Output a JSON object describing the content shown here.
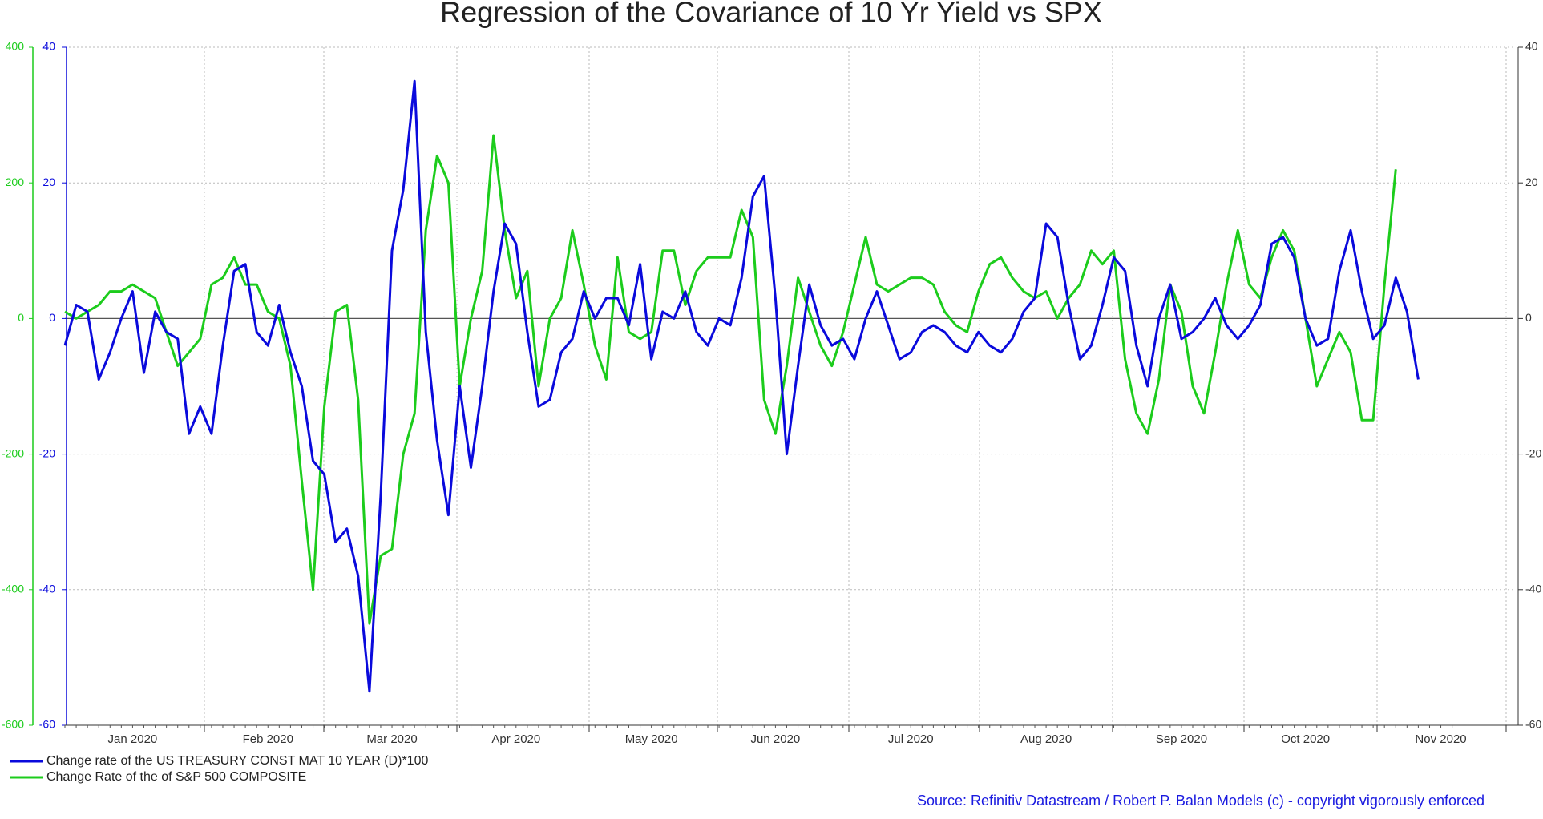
{
  "chart_data": {
    "type": "line",
    "title": "Regression of the Covariance of 10 Yr Yield vs SPX",
    "source": "Source: Refinitiv Datastream /  Robert P. Balan Models (c) - copyright vigorously enforced",
    "categories": [
      null,
      null,
      null,
      null,
      null,
      null,
      "Jan 2020",
      null,
      null,
      null,
      null,
      null,
      null,
      null,
      null,
      null,
      null,
      null,
      "Feb 2020",
      null,
      null,
      null,
      null,
      null,
      null,
      null,
      null,
      null,
      null,
      "Mar 2020",
      null,
      null,
      null,
      null,
      null,
      null,
      null,
      null,
      null,
      null,
      "Apr 2020",
      null,
      null,
      null,
      null,
      null,
      null,
      null,
      null,
      null,
      null,
      null,
      "May 2020",
      null,
      null,
      null,
      null,
      null,
      null,
      null,
      null,
      null,
      null,
      "Jun 2020",
      null,
      null,
      null,
      null,
      null,
      null,
      null,
      null,
      null,
      null,
      null,
      "Jul 2020",
      null,
      null,
      null,
      null,
      null,
      null,
      null,
      null,
      null,
      null,
      null,
      "Aug 2020",
      null,
      null,
      null,
      null,
      null,
      null,
      null,
      null,
      null,
      null,
      null,
      "Sep 2020",
      null,
      null,
      null,
      null,
      null,
      null,
      null,
      null,
      null,
      null,
      "Oct 2020",
      null,
      null,
      null,
      null,
      null,
      null,
      null,
      null,
      null,
      null,
      null,
      "Nov 2020",
      null
    ],
    "ylim": [
      -600,
      400
    ],
    "yticks": [
      -600,
      -400,
      -200,
      0,
      200,
      400
    ],
    "y2lim": [
      -60,
      40
    ],
    "y2ticks": [
      -60,
      -40,
      -20,
      0,
      20,
      40
    ],
    "grid": true,
    "series": [
      {
        "name": "Change rate of the US TREASURY CONST MAT 10 YEAR (D)*100",
        "color": "#0a0adc",
        "axis": "y2",
        "values": [
          -4,
          2,
          1,
          -9,
          -5,
          0,
          4,
          -8,
          1,
          -2,
          -3,
          -17,
          -13,
          -17,
          -4,
          7,
          8,
          -2,
          -4,
          2,
          -5,
          -10,
          -21,
          -23,
          -33,
          -31,
          -38,
          -55,
          -26,
          10,
          19,
          35,
          -2,
          -18,
          -29,
          -10,
          -22,
          -10,
          4,
          14,
          11,
          -2,
          -13,
          -12,
          -5,
          -3,
          4,
          0,
          3,
          3,
          -1,
          8,
          -6,
          1,
          0,
          4,
          -2,
          -4,
          0,
          -1,
          6,
          18,
          21,
          3,
          -20,
          -7,
          5,
          -1,
          -4,
          -3,
          -6,
          0,
          4,
          -1,
          -6,
          -5,
          -2,
          -1,
          -2,
          -4,
          -5,
          -2,
          -4,
          -5,
          -3,
          1,
          3,
          14,
          12,
          2,
          -6,
          -4,
          2,
          9,
          7,
          -4,
          -10,
          0,
          5,
          -3,
          -2,
          0,
          3,
          -1,
          -3,
          -1,
          2,
          11,
          12,
          9,
          0,
          -4,
          -3,
          7,
          13,
          4,
          -3,
          -1,
          6,
          1,
          -9,
          null,
          null,
          null
        ]
      },
      {
        "name": "Change Rate of the of S&P 500 COMPOSITE",
        "color": "#1ccc1c",
        "axis": "y",
        "values": [
          10,
          0,
          10,
          20,
          40,
          40,
          50,
          40,
          30,
          -20,
          -70,
          -50,
          -30,
          50,
          60,
          90,
          50,
          50,
          10,
          0,
          -70,
          -240,
          -400,
          -130,
          10,
          20,
          -120,
          -450,
          -350,
          -340,
          -200,
          -140,
          130,
          240,
          200,
          -100,
          0,
          70,
          270,
          130,
          30,
          70,
          -100,
          0,
          30,
          130,
          50,
          -40,
          -90,
          90,
          -20,
          -30,
          -20,
          100,
          100,
          20,
          70,
          90,
          90,
          90,
          160,
          120,
          -120,
          -170,
          -70,
          60,
          10,
          -40,
          -70,
          -20,
          50,
          120,
          50,
          40,
          50,
          60,
          60,
          50,
          10,
          -10,
          -20,
          40,
          80,
          90,
          60,
          40,
          30,
          40,
          0,
          30,
          50,
          100,
          80,
          100,
          -60,
          -140,
          -170,
          -90,
          50,
          10,
          -100,
          -140,
          -50,
          50,
          130,
          50,
          30,
          90,
          130,
          100,
          0,
          -100,
          -60,
          -20,
          -50,
          -150,
          -150,
          50,
          220,
          null,
          null,
          null,
          null,
          null
        ]
      }
    ]
  }
}
